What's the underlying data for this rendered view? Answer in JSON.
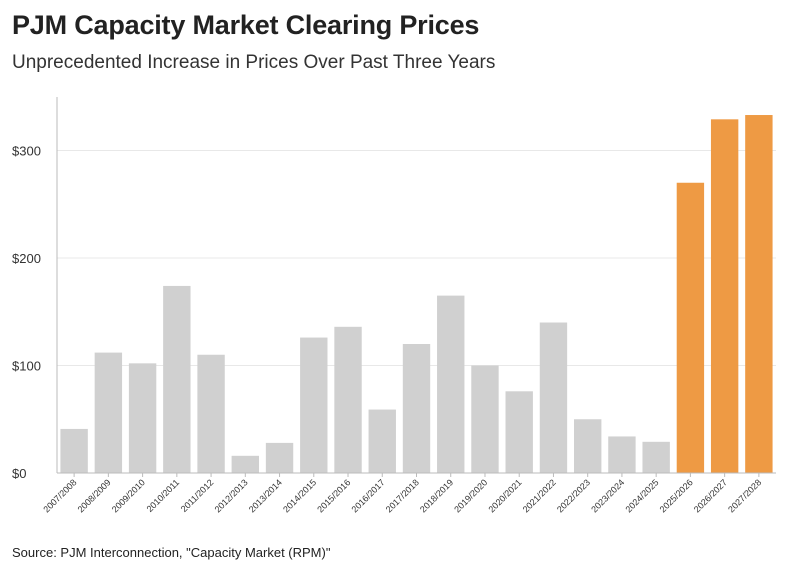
{
  "header": {
    "title": "PJM Capacity Market Clearing Prices",
    "subtitle": "Unprecedented Increase in Prices Over Past Three Years"
  },
  "footer": {
    "source": "Source: PJM Interconnection, \"Capacity Market (RPM)\""
  },
  "colors": {
    "past": "#d0d0d0",
    "recent": "#ee9a44",
    "grid": "#e8e8e8",
    "axis": "#bbbbbb"
  },
  "chart_data": {
    "type": "bar",
    "title": "PJM Capacity Market Clearing Prices",
    "subtitle": "Unprecedented Increase in Prices Over Past Three Years",
    "xlabel": "",
    "ylabel": "",
    "ylim": [
      0,
      350
    ],
    "yticks": [
      0,
      100,
      200,
      300
    ],
    "ytick_labels": [
      "$0",
      "$100",
      "$200",
      "$300"
    ],
    "grid": true,
    "categories": [
      "2007/2008",
      "2008/2009",
      "2009/2010",
      "2010/2011",
      "2011/2012",
      "2012/2013",
      "2013/2014",
      "2014/2015",
      "2015/2016",
      "2016/2017",
      "2017/2018",
      "2018/2019",
      "2019/2020",
      "2020/2021",
      "2021/2022",
      "2022/2023",
      "2023/2024",
      "2024/2025",
      "2025/2026",
      "2026/2027",
      "2027/2028"
    ],
    "values": [
      41,
      112,
      102,
      174,
      110,
      16,
      28,
      126,
      136,
      59,
      120,
      165,
      100,
      76,
      140,
      50,
      34,
      29,
      270,
      329,
      333
    ],
    "highlight": [
      false,
      false,
      false,
      false,
      false,
      false,
      false,
      false,
      false,
      false,
      false,
      false,
      false,
      false,
      false,
      false,
      false,
      false,
      true,
      true,
      true
    ]
  }
}
